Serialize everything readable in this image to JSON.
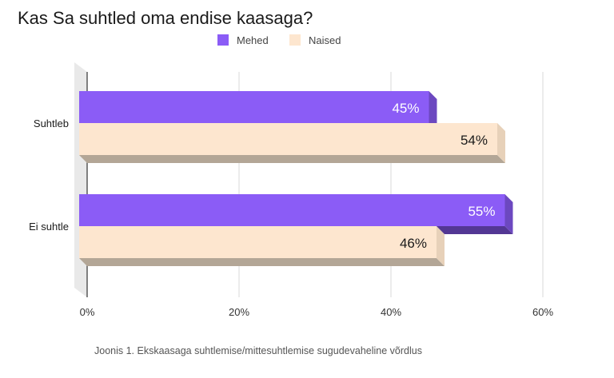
{
  "chart_data": {
    "type": "bar",
    "orientation": "horizontal",
    "title": "Kas Sa suhtled oma endise kaasaga?",
    "caption": "Joonis 1. Ekskaasaga suhtlemise/mittesuhtlemise sugudevaheline võrdlus",
    "categories": [
      "Suhtleb",
      "Ei suhtle"
    ],
    "series": [
      {
        "name": "Mehed",
        "values": [
          45,
          55
        ],
        "color": "#8b5cf6"
      },
      {
        "name": "Naised",
        "values": [
          54,
          46
        ],
        "color": "#fde6cf"
      }
    ],
    "data_labels": [
      [
        "45%",
        "55%"
      ],
      [
        "54%",
        "46%"
      ]
    ],
    "x_ticks": [
      {
        "value": 0,
        "label": "0%"
      },
      {
        "value": 20,
        "label": "20%"
      },
      {
        "value": 40,
        "label": "40%"
      },
      {
        "value": 60,
        "label": "60%"
      }
    ],
    "xlim": [
      0,
      60
    ],
    "grid": true,
    "legend_position": "top-center",
    "style": "3d"
  }
}
